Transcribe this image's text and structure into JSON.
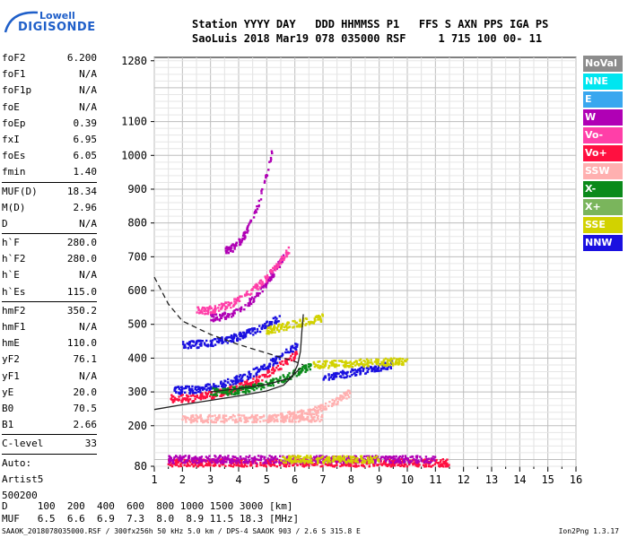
{
  "logo": {
    "line1": "Lowell",
    "line2": "DIGISONDE"
  },
  "header": {
    "line1": "Station YYYY DAY   DDD HHMMSS P1   FFS S AXN PPS IGA PS",
    "line2": "SaoLuis 2018 Mar19 078 035000 RSF     1 715 100 00- 11"
  },
  "params": {
    "group1": [
      {
        "k": "foF2",
        "v": "6.200"
      },
      {
        "k": "foF1",
        "v": "N/A"
      },
      {
        "k": "foF1p",
        "v": "N/A"
      },
      {
        "k": "foE",
        "v": "N/A"
      },
      {
        "k": "foEp",
        "v": "0.39"
      },
      {
        "k": "fxI",
        "v": "6.95"
      },
      {
        "k": "foEs",
        "v": "6.05"
      },
      {
        "k": "fmin",
        "v": "1.40"
      }
    ],
    "group2": [
      {
        "k": "MUF(D)",
        "v": "18.34"
      },
      {
        "k": "M(D)",
        "v": "2.96"
      },
      {
        "k": "D",
        "v": "N/A"
      }
    ],
    "group3": [
      {
        "k": "h`F",
        "v": "280.0"
      },
      {
        "k": "h`F2",
        "v": "280.0"
      },
      {
        "k": "h`E",
        "v": "N/A"
      },
      {
        "k": "h`Es",
        "v": "115.0"
      }
    ],
    "group4": [
      {
        "k": "hmF2",
        "v": "350.2"
      },
      {
        "k": "hmF1",
        "v": "N/A"
      },
      {
        "k": "hmE",
        "v": "110.0"
      },
      {
        "k": "yF2",
        "v": "76.1"
      },
      {
        "k": "yF1",
        "v": "N/A"
      },
      {
        "k": "yE",
        "v": "20.0"
      },
      {
        "k": "B0",
        "v": "70.5"
      },
      {
        "k": "B1",
        "v": "2.66"
      }
    ],
    "group5": [
      {
        "k": "C-level",
        "v": "33"
      }
    ],
    "auto": [
      "Auto:",
      "Artist5",
      "500200"
    ]
  },
  "legend": [
    {
      "label": "NoVal",
      "color": "#8c8c8c"
    },
    {
      "label": "NNE",
      "color": "#00e6f0"
    },
    {
      "label": "E",
      "color": "#39a7ef"
    },
    {
      "label": "W",
      "color": "#b000b5"
    },
    {
      "label": "Vo-",
      "color": "#ff3fa8"
    },
    {
      "label": "Vo+",
      "color": "#ff1040"
    },
    {
      "label": "SSW",
      "color": "#ffb0b0"
    },
    {
      "label": "X-",
      "color": "#0a8a1a"
    },
    {
      "label": "X+",
      "color": "#7ab55c"
    },
    {
      "label": "SSE",
      "color": "#d2d200"
    },
    {
      "label": "NNW",
      "color": "#1a10e0"
    }
  ],
  "chart_data": {
    "type": "scatter",
    "xlabel": "",
    "ylabel": "",
    "xlim": [
      1,
      16
    ],
    "ylim": [
      80,
      1290
    ],
    "x_ticks": [
      "1",
      "2",
      "3",
      "4",
      "5",
      "6",
      "7",
      "8",
      "9",
      "10",
      "11",
      "12",
      "13",
      "14",
      "15",
      "16"
    ],
    "y_ticks": [
      {
        "v": 80,
        "label": "80"
      },
      {
        "v": 200,
        "label": "200"
      },
      {
        "v": 300,
        "label": "300"
      },
      {
        "v": 400,
        "label": "400"
      },
      {
        "v": 500,
        "label": "500"
      },
      {
        "v": 600,
        "label": "600"
      },
      {
        "v": 700,
        "label": "700"
      },
      {
        "v": 800,
        "label": "800"
      },
      {
        "v": 900,
        "label": "900"
      },
      {
        "v": 1000,
        "label": "1000"
      },
      {
        "v": 1100,
        "label": "1100"
      },
      {
        "v": 1280,
        "label": "1280"
      }
    ],
    "grid": true,
    "series": [
      {
        "name": "Vo+",
        "color": "#ff1040",
        "traces": [
          {
            "x0": 1.6,
            "x1": 6.2,
            "y0": 280,
            "y1": 420,
            "shape": "rise"
          },
          {
            "x0": 1.5,
            "x1": 11.5,
            "y0": 90,
            "y1": 90,
            "shape": "flat"
          }
        ]
      },
      {
        "name": "NNW",
        "color": "#1a10e0",
        "traces": [
          {
            "x0": 1.7,
            "x1": 6.1,
            "y0": 305,
            "y1": 440,
            "shape": "rise"
          },
          {
            "x0": 2.0,
            "x1": 5.5,
            "y0": 440,
            "y1": 520,
            "shape": "rise"
          },
          {
            "x0": 7.0,
            "x1": 9.5,
            "y0": 340,
            "y1": 380,
            "shape": "flat"
          }
        ]
      },
      {
        "name": "W",
        "color": "#b000b5",
        "traces": [
          {
            "x0": 3.0,
            "x1": 5.6,
            "y0": 520,
            "y1": 700,
            "shape": "rise"
          },
          {
            "x0": 3.5,
            "x1": 5.2,
            "y0": 720,
            "y1": 1010,
            "shape": "rise"
          },
          {
            "x0": 1.5,
            "x1": 11.0,
            "y0": 100,
            "y1": 100,
            "shape": "flat"
          }
        ]
      },
      {
        "name": "SSE",
        "color": "#d2d200",
        "traces": [
          {
            "x0": 6.6,
            "x1": 10.0,
            "y0": 380,
            "y1": 390,
            "shape": "flat"
          },
          {
            "x0": 5.0,
            "x1": 7.0,
            "y0": 480,
            "y1": 520,
            "shape": "flat"
          },
          {
            "x0": 5.5,
            "x1": 9.0,
            "y0": 100,
            "y1": 100,
            "shape": "flat"
          }
        ]
      },
      {
        "name": "X-",
        "color": "#0a8a1a",
        "traces": [
          {
            "x0": 3.0,
            "x1": 6.6,
            "y0": 300,
            "y1": 380,
            "shape": "rise"
          }
        ]
      },
      {
        "name": "SSW",
        "color": "#ffb0b0",
        "traces": [
          {
            "x0": 2.0,
            "x1": 7.0,
            "y0": 220,
            "y1": 222,
            "shape": "flat"
          },
          {
            "x0": 5.5,
            "x1": 8.0,
            "y0": 230,
            "y1": 300,
            "shape": "rise"
          }
        ]
      },
      {
        "name": "Vo-",
        "color": "#ff3fa8",
        "traces": [
          {
            "x0": 2.5,
            "x1": 5.8,
            "y0": 540,
            "y1": 720,
            "shape": "rise"
          }
        ]
      }
    ],
    "profile": [
      {
        "x": 1.0,
        "y": 248
      },
      {
        "x": 2.0,
        "y": 262
      },
      {
        "x": 3.0,
        "y": 275
      },
      {
        "x": 4.0,
        "y": 288
      },
      {
        "x": 5.0,
        "y": 303
      },
      {
        "x": 5.6,
        "y": 320
      },
      {
        "x": 5.9,
        "y": 345
      },
      {
        "x": 6.1,
        "y": 380
      },
      {
        "x": 6.2,
        "y": 420
      },
      {
        "x": 6.25,
        "y": 480
      },
      {
        "x": 6.3,
        "y": 530
      }
    ],
    "profile_dashed": [
      {
        "x": 1.0,
        "y": 640
      },
      {
        "x": 1.5,
        "y": 560
      },
      {
        "x": 2.0,
        "y": 510
      },
      {
        "x": 3.0,
        "y": 470
      },
      {
        "x": 4.0,
        "y": 440
      },
      {
        "x": 5.0,
        "y": 415
      },
      {
        "x": 6.0,
        "y": 390
      },
      {
        "x": 6.3,
        "y": 380
      }
    ],
    "bottom_profile": [
      {
        "x": 3.0,
        "y": 300
      },
      {
        "x": 4.0,
        "y": 310
      },
      {
        "x": 5.0,
        "y": 322
      },
      {
        "x": 5.8,
        "y": 340
      },
      {
        "x": 6.2,
        "y": 370
      }
    ]
  },
  "mufline": {
    "d_label": "D",
    "d_values": "100  200  400  600  800 1000 1500 3000 [km]",
    "muf_label": "MUF",
    "muf_values": "6.5  6.6  6.9  7.3  8.0  8.9 11.5 18.3 [MHz]"
  },
  "footer": "SAAOK_2018078035000.RSF / 300fx256h 50 kHz 5.0 km / DPS-4 SAAOK 903 / 2.6 S 315.8 E",
  "version": "Ion2Png 1.3.17"
}
